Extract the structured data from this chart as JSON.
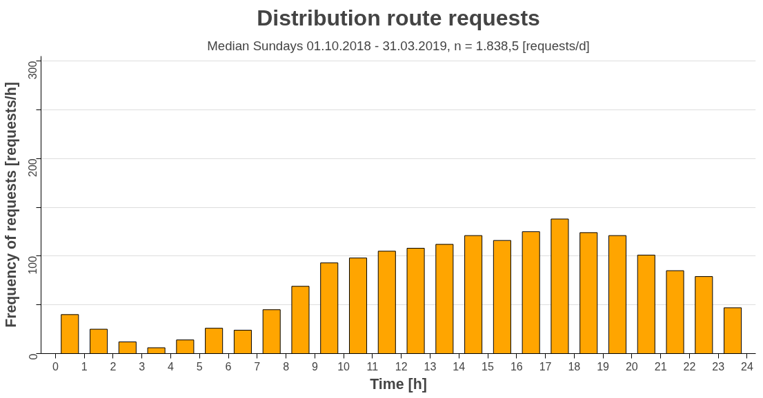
{
  "chart_data": {
    "type": "bar",
    "title": "Distribution route requests",
    "subtitle": "Median Sundays 01.10.2018 - 31.03.2019, n = 1.838,5 [requests/d]",
    "xlabel": "Time [h]",
    "ylabel": "Frequency of requests [requests/h]",
    "x": [
      0.5,
      1.5,
      2.5,
      3.5,
      4.5,
      5.5,
      6.5,
      7.5,
      8.5,
      9.5,
      10.5,
      11.5,
      12.5,
      13.5,
      14.5,
      15.5,
      16.5,
      17.5,
      18.5,
      19.5,
      20.5,
      21.5,
      22.5,
      23.5
    ],
    "series": [
      {
        "color": "#ffa500",
        "values": [
          40,
          25,
          12,
          6,
          14,
          26,
          24,
          45,
          69,
          93,
          98,
          105,
          108,
          112,
          121,
          116,
          125,
          138,
          124,
          121,
          101,
          85,
          79,
          47
        ]
      }
    ],
    "xlim": [
      -0.5,
      24.3
    ],
    "xticks": [
      0,
      1,
      2,
      3,
      4,
      5,
      6,
      7,
      8,
      9,
      10,
      11,
      12,
      13,
      14,
      15,
      16,
      17,
      18,
      19,
      20,
      21,
      22,
      23,
      24
    ],
    "ylim": [
      0,
      305
    ],
    "yticks": [
      0,
      {
        "value": 50,
        "label": null
      },
      100,
      {
        "value": 150,
        "label": null
      },
      200,
      {
        "value": 250,
        "label": null
      },
      300
    ],
    "grid": "y"
  }
}
